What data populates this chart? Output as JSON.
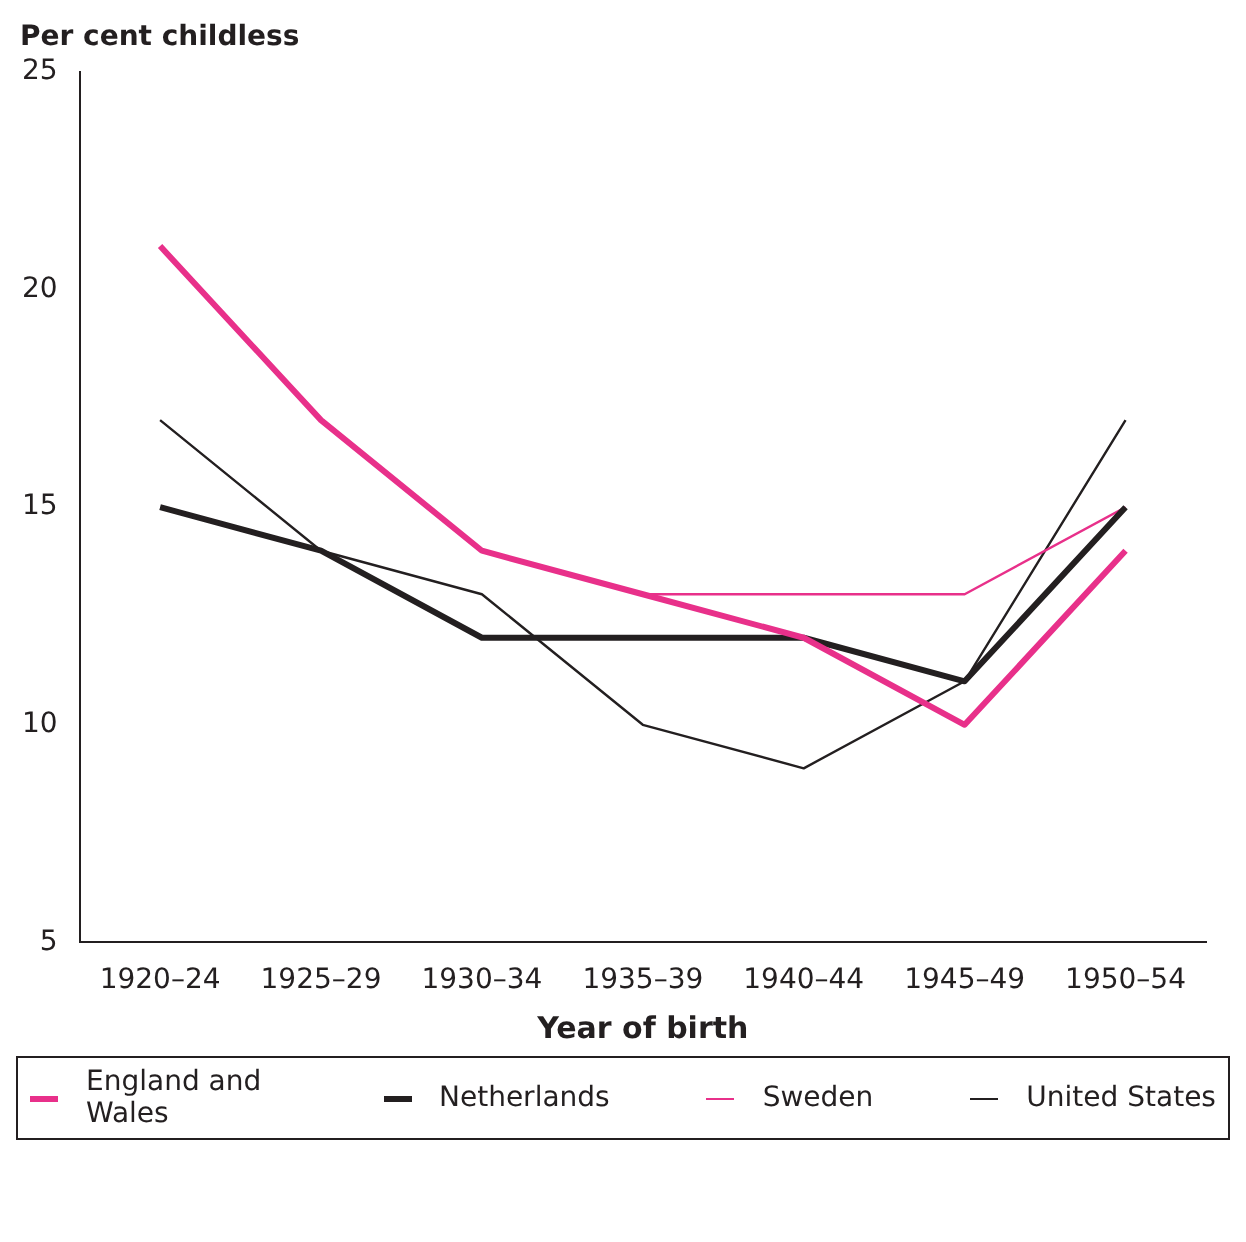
{
  "chart_data": {
    "type": "line",
    "xlabel": "Year of birth",
    "ylabel": "Per cent childless",
    "categories": [
      "1920–24",
      "1925–29",
      "1930–34",
      "1935–39",
      "1940–44",
      "1945–49",
      "1950–54"
    ],
    "series": [
      {
        "name": "England and Wales",
        "color": "#e8308a",
        "values": [
          21,
          17,
          14,
          13,
          12,
          10,
          14
        ]
      },
      {
        "name": "Netherlands",
        "color": "#231f20",
        "values": [
          15,
          14,
          12,
          12,
          12,
          11,
          15
        ]
      },
      {
        "name": "Sweden",
        "color": "#e8308a",
        "values": [
          null,
          null,
          null,
          13,
          13,
          13,
          15
        ]
      },
      {
        "name": "United States",
        "color": "#231f20",
        "values": [
          17,
          14,
          13,
          10,
          9,
          11,
          17
        ]
      }
    ],
    "ylim": [
      5,
      25
    ],
    "yticks": [
      5,
      10,
      15,
      20,
      25
    ],
    "grid": false,
    "legend": "bottom",
    "marker": "none",
    "line_style": "solid"
  }
}
